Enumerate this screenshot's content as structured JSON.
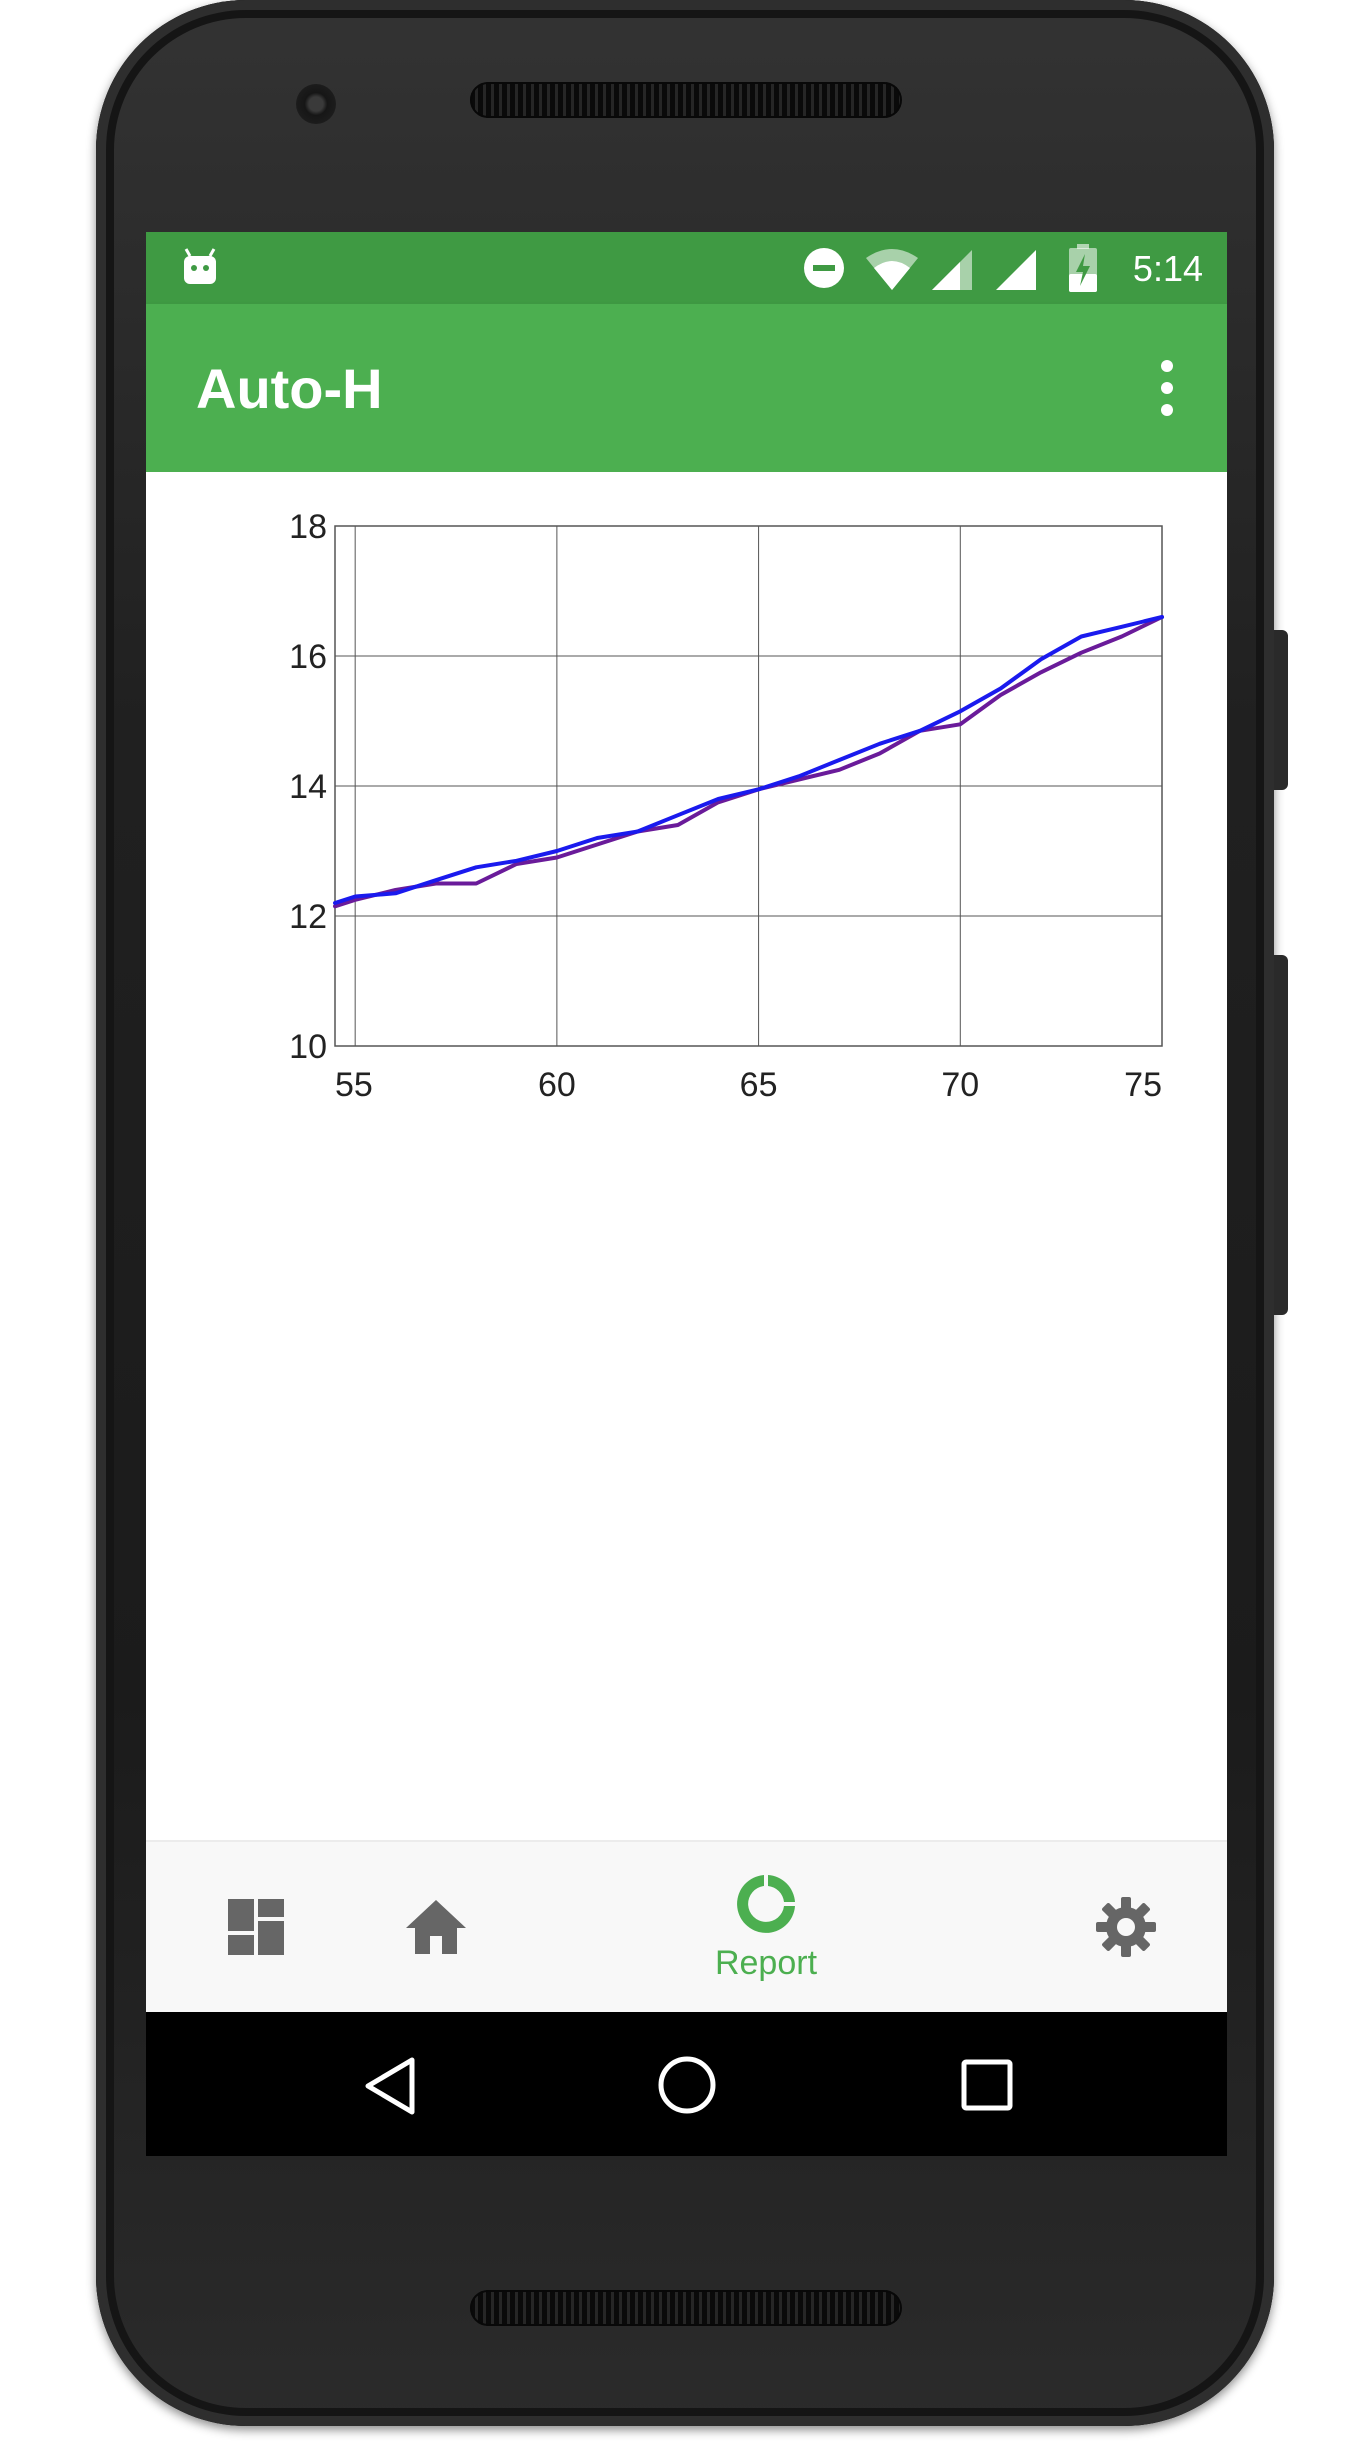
{
  "status_bar": {
    "time": "5:14",
    "icons": [
      "android-debug-icon",
      "do-not-disturb-icon",
      "wifi-icon",
      "signal-icon",
      "signal-icon-2",
      "battery-charging-icon"
    ]
  },
  "app_bar": {
    "title": "Auto-H",
    "menu_icon": "more-vert-icon"
  },
  "chart_data": {
    "type": "line",
    "title": "",
    "xlabel": "",
    "ylabel": "",
    "xlim": [
      54.5,
      75
    ],
    "ylim": [
      10,
      18
    ],
    "x_ticks": [
      "55",
      "60",
      "65",
      "70",
      "75"
    ],
    "y_ticks": [
      "10",
      "12",
      "14",
      "16",
      "18"
    ],
    "grid": true,
    "series": [
      {
        "color": "#6a1b9a",
        "x": [
          54.5,
          55,
          56,
          57,
          58,
          59,
          60,
          61,
          62,
          63,
          64,
          65,
          66,
          67,
          68,
          69,
          70,
          71,
          72,
          73,
          74,
          75
        ],
        "y": [
          12.15,
          12.25,
          12.4,
          12.5,
          12.5,
          12.8,
          12.9,
          13.1,
          13.3,
          13.4,
          13.75,
          13.95,
          14.1,
          14.25,
          14.5,
          14.85,
          14.95,
          15.4,
          15.75,
          16.05,
          16.3,
          16.6
        ]
      },
      {
        "color": "#1a1aee",
        "x": [
          54.5,
          55,
          56,
          57,
          58,
          59,
          60,
          61,
          62,
          63,
          64,
          65,
          66,
          67,
          68,
          69,
          70,
          71,
          72,
          73,
          74,
          75
        ],
        "y": [
          12.2,
          12.3,
          12.35,
          12.55,
          12.75,
          12.85,
          13.0,
          13.2,
          13.3,
          13.55,
          13.8,
          13.95,
          14.15,
          14.4,
          14.65,
          14.85,
          15.15,
          15.5,
          15.95,
          16.3,
          16.45,
          16.6
        ]
      }
    ]
  },
  "bottom_nav": {
    "items": [
      {
        "icon": "dashboard-icon",
        "label": ""
      },
      {
        "icon": "home-icon",
        "label": ""
      },
      {
        "icon": "report-donut-icon",
        "label": "Report",
        "active": true
      },
      {
        "icon": "settings-gear-icon",
        "label": ""
      }
    ],
    "active_color": "#4caf50",
    "inactive_color": "#666666"
  },
  "system_nav": {
    "buttons": [
      "back-icon",
      "home-circle-icon",
      "recents-icon"
    ]
  }
}
